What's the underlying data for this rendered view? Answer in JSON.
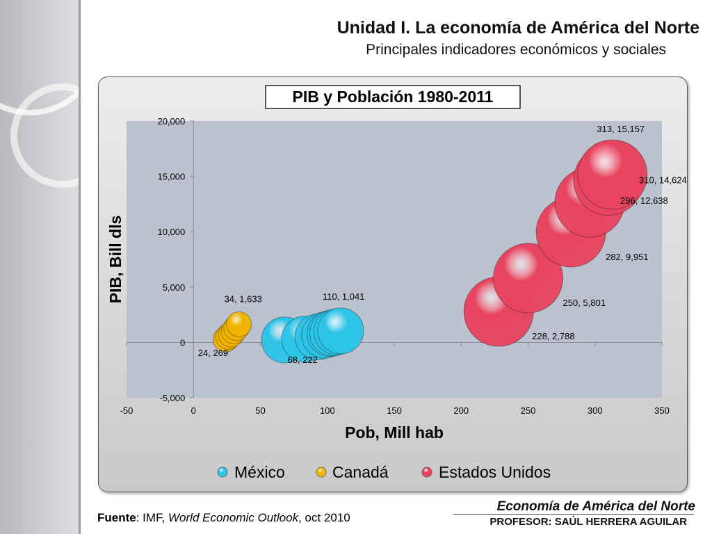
{
  "header": {
    "title": "Unidad I. La economía de América del Norte",
    "subtitle": "Principales indicadores económicos y sociales"
  },
  "chart_data": {
    "type": "bubble",
    "title": "PIB y Población 1980-2011",
    "xlabel": "Pob, Mill hab",
    "ylabel": "PIB, Bill dls",
    "xlim": [
      -50,
      350
    ],
    "ylim": [
      -5000,
      20000
    ],
    "x_ticks": [
      "-50",
      "0",
      "50",
      "100",
      "150",
      "200",
      "250",
      "300",
      "350"
    ],
    "y_ticks": [
      "20,000",
      "15,000",
      "10,000",
      "5,000",
      "0",
      "-5,000"
    ],
    "legend_position": "bottom",
    "plot_background": "#bcc2d0",
    "series": [
      {
        "name": "México",
        "color": "#2ec4e8",
        "points": [
          [
            68,
            222
          ],
          [
            83,
            300
          ],
          [
            93,
            500
          ],
          [
            98,
            650
          ],
          [
            102,
            800
          ],
          [
            104,
            850
          ],
          [
            107,
            950
          ],
          [
            110,
            1041
          ]
        ],
        "labels": [
          {
            "text": "68, 222",
            "point": 0
          },
          {
            "text": "110, 1,041",
            "point": 7
          }
        ]
      },
      {
        "name": "Canadá",
        "color": "#f0b400",
        "points": [
          [
            24,
            269
          ],
          [
            26,
            500
          ],
          [
            28,
            700
          ],
          [
            30,
            1000
          ],
          [
            32,
            1300
          ],
          [
            34,
            1633
          ]
        ],
        "labels": [
          {
            "text": "24, 269",
            "point": 0
          },
          {
            "text": "34, 1,633",
            "point": 5
          }
        ]
      },
      {
        "name": "Estados Unidos",
        "color": "#e8445f",
        "points": [
          [
            228,
            2788
          ],
          [
            250,
            5801
          ],
          [
            282,
            9951
          ],
          [
            296,
            12638
          ],
          [
            310,
            14624
          ],
          [
            313,
            15157
          ]
        ],
        "labels": [
          {
            "text": "228, 2,788",
            "point": 0
          },
          {
            "text": "250, 5,801",
            "point": 1
          },
          {
            "text": "282, 9,951",
            "point": 2
          },
          {
            "text": "296, 12,638",
            "point": 3
          },
          {
            "text": "310, 14,624",
            "point": 4
          },
          {
            "text": "313, 15,157",
            "point": 5
          }
        ]
      }
    ]
  },
  "footer": {
    "source_label": "Fuente",
    "source_text_1": ": IMF, ",
    "source_publication": "World Economic Outlook",
    "source_text_2": ", oct 2010",
    "course": "Economía de América del Norte",
    "professor": "PROFESOR: SAÚL HERRERA AGUILAR"
  }
}
